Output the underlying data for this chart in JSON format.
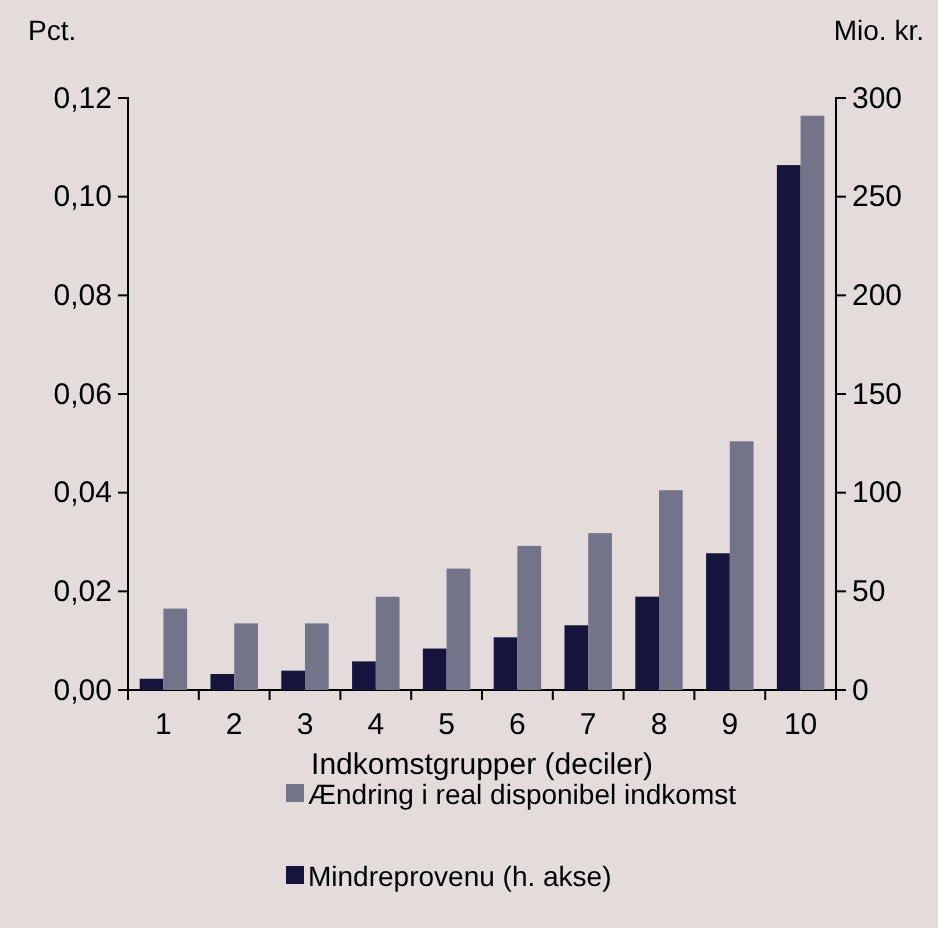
{
  "chart_data": {
    "type": "bar",
    "xlabel": "Indkomstgrupper (deciler)",
    "ylabel": "Pct.",
    "y2label": "Mio. kr.",
    "categories": [
      "1",
      "2",
      "3",
      "4",
      "5",
      "6",
      "7",
      "8",
      "9",
      "10"
    ],
    "series": [
      {
        "name": "Mindreprovenu (h. akse)",
        "color": "#16143c",
        "axis": "y2",
        "values": [
          5.7,
          8.1,
          9.8,
          14.5,
          21,
          26.7,
          32.8,
          47.3,
          69.3,
          266
        ]
      },
      {
        "name": "Ændring i real disponibel indkomst",
        "color": "#737389",
        "values": [
          0.0165,
          0.0135,
          0.0135,
          0.0189,
          0.0246,
          0.0292,
          0.0318,
          0.0405,
          0.0504,
          0.1164
        ]
      }
    ],
    "ylim": [
      0,
      0.12
    ],
    "yticks": [
      {
        "value": 0,
        "label": "0,00"
      },
      {
        "value": 0.02,
        "label": "0,02"
      },
      {
        "value": 0.04,
        "label": "0,04"
      },
      {
        "value": 0.06,
        "label": "0,06"
      },
      {
        "value": 0.08,
        "label": "0,08"
      },
      {
        "value": 0.1,
        "label": "0,10"
      },
      {
        "value": 0.12,
        "label": "0,12"
      }
    ],
    "y2lim": [
      0,
      300
    ],
    "y2ticks": [
      0,
      50,
      100,
      150,
      200,
      250,
      300
    ],
    "legend": "bottom",
    "grid": false
  }
}
